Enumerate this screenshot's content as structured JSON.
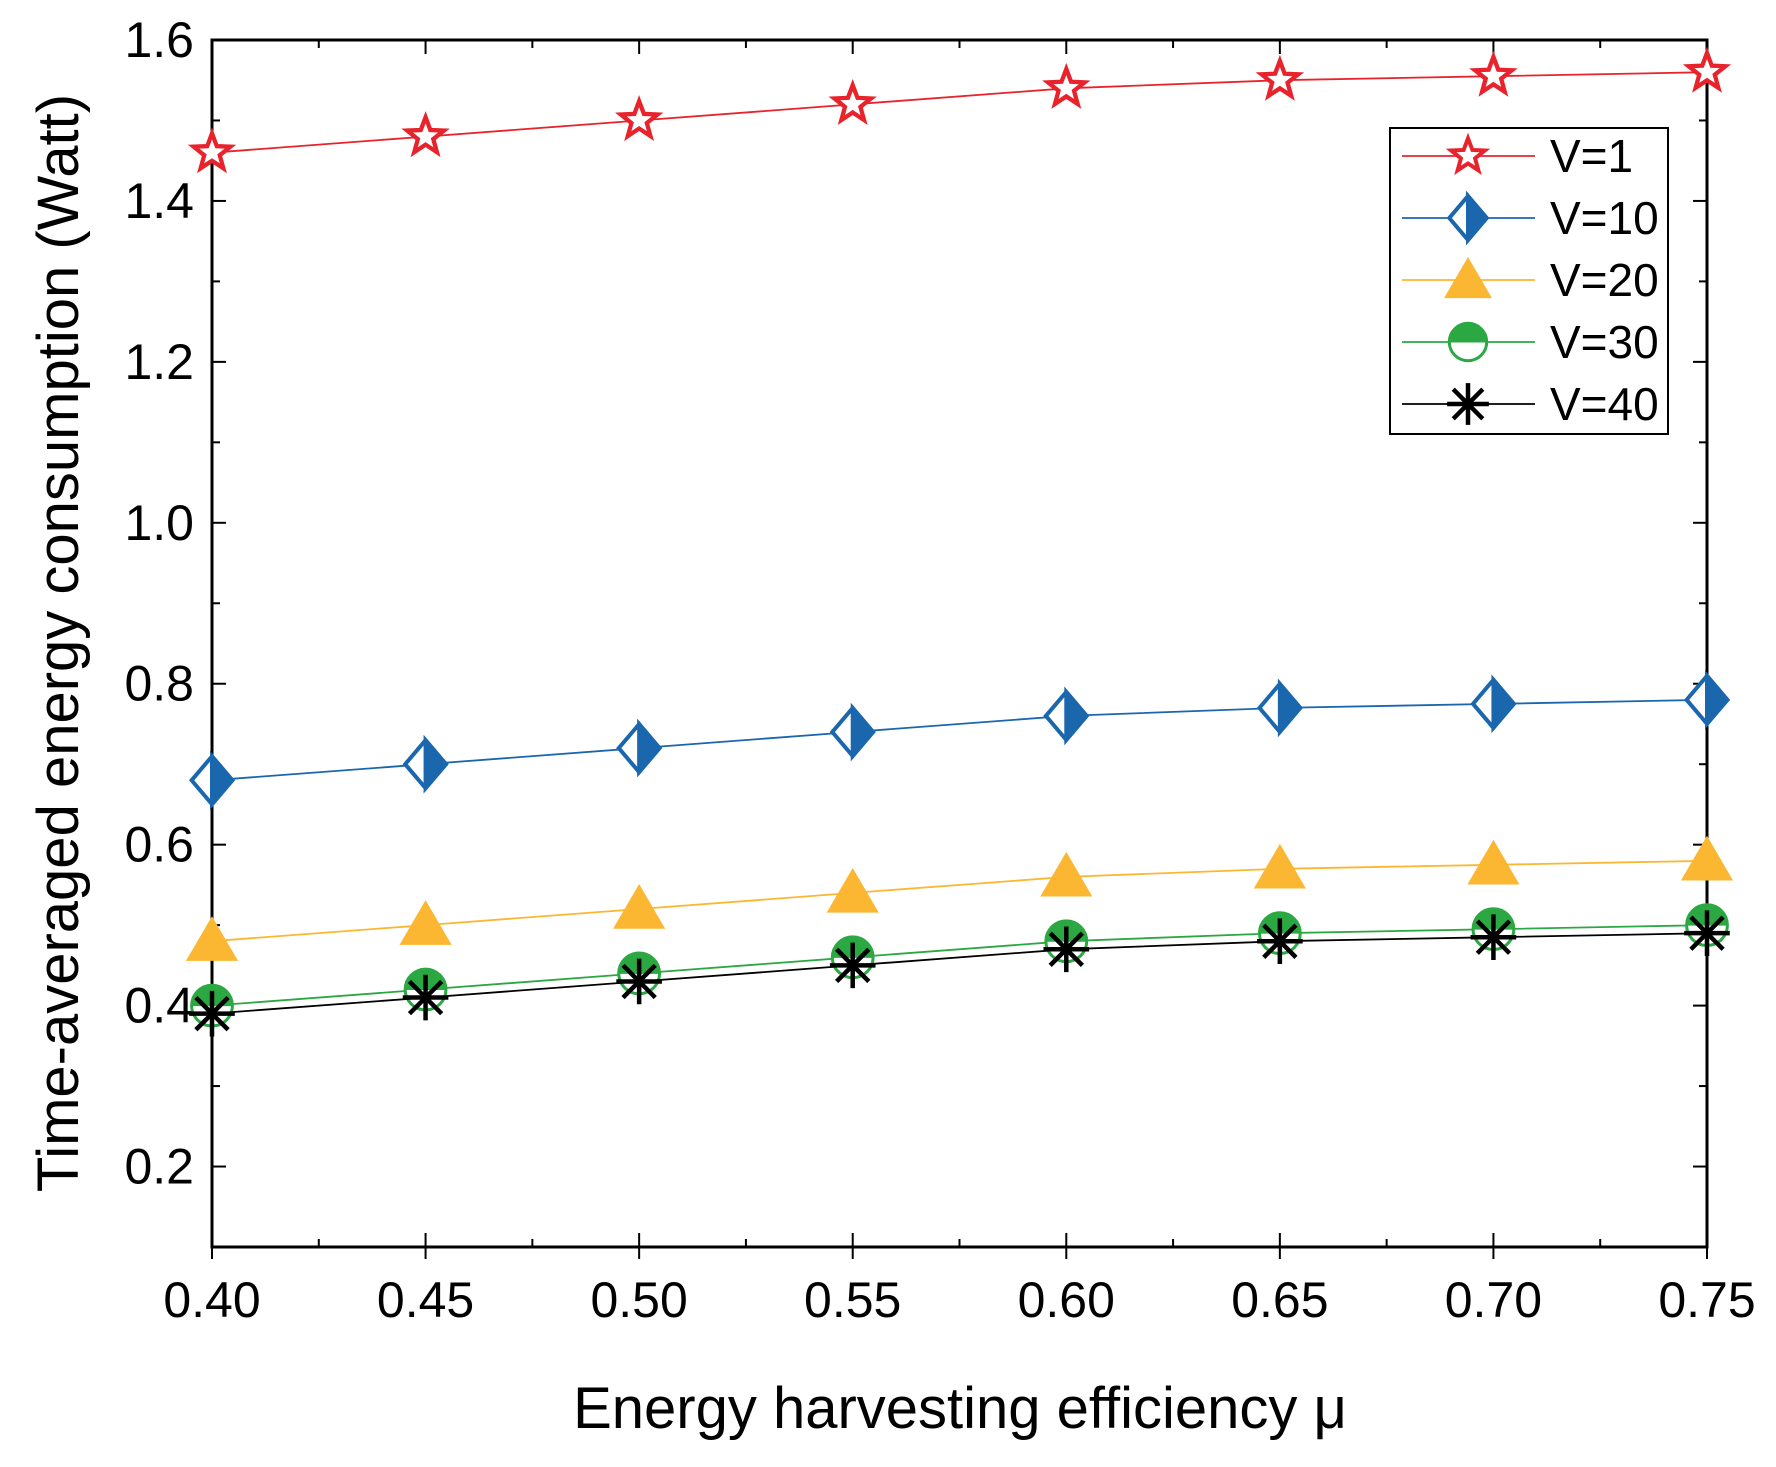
{
  "chart_data": {
    "type": "line",
    "title": "",
    "xlabel": "Energy harvesting efficiency μ",
    "ylabel": "Time-averaged energy consumption (Watt)",
    "xlim": [
      0.4,
      0.75
    ],
    "ylim": [
      0.1,
      1.6
    ],
    "x": [
      0.4,
      0.45,
      0.5,
      0.55,
      0.6,
      0.65,
      0.7,
      0.75
    ],
    "x_tick_labels": [
      "0.40",
      "0.45",
      "0.50",
      "0.55",
      "0.60",
      "0.65",
      "0.70",
      "0.75"
    ],
    "y_ticks": [
      0.2,
      0.4,
      0.6,
      0.8,
      1.0,
      1.2,
      1.4,
      1.6
    ],
    "y_tick_labels": [
      "0.2",
      "0.4",
      "0.6",
      "0.8",
      "1.0",
      "1.2",
      "1.4",
      "1.6"
    ],
    "grid": false,
    "legend_position": "top-right",
    "series": [
      {
        "name": "V=1",
        "marker": "star",
        "color": "#e8232b",
        "values": [
          1.46,
          1.48,
          1.5,
          1.52,
          1.54,
          1.55,
          1.555,
          1.56
        ]
      },
      {
        "name": "V=10",
        "marker": "half-diamond",
        "color": "#1b67ad",
        "values": [
          0.68,
          0.7,
          0.72,
          0.74,
          0.76,
          0.77,
          0.775,
          0.78
        ]
      },
      {
        "name": "V=20",
        "marker": "triangle",
        "color": "#fbb731",
        "values": [
          0.48,
          0.5,
          0.52,
          0.54,
          0.56,
          0.57,
          0.575,
          0.58
        ]
      },
      {
        "name": "V=30",
        "marker": "half-circle",
        "color": "#2ca843",
        "values": [
          0.4,
          0.42,
          0.44,
          0.46,
          0.48,
          0.49,
          0.495,
          0.5
        ]
      },
      {
        "name": "V=40",
        "marker": "asterisk",
        "color": "#000000",
        "values": [
          0.39,
          0.41,
          0.43,
          0.45,
          0.47,
          0.48,
          0.485,
          0.49
        ]
      }
    ]
  }
}
